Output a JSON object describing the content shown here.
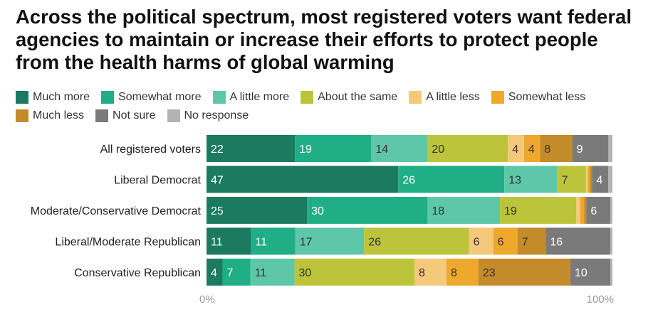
{
  "title": "Across the political spectrum, most registered voters want federal agencies to maintain or increase their efforts to protect people from the health harms of global warming",
  "chart_data": {
    "type": "bar",
    "orientation": "horizontal",
    "stacked": true,
    "title": "Across the political spectrum, most registered voters want federal agencies to maintain or increase their efforts to protect people from the health harms of global warming",
    "xlabel": "",
    "ylabel": "",
    "xlim": [
      0,
      100
    ],
    "x_tick_labels": [
      "0%",
      "100%"
    ],
    "grid": false,
    "legend_position": "top",
    "categories": [
      "All registered voters",
      "Liberal Democrat",
      "Moderate/Conservative Democrat",
      "Liberal/Moderate Republican",
      "Conservative Republican"
    ],
    "series": [
      {
        "name": "Much more",
        "color": "#1b7a5f",
        "values": [
          22,
          47,
          25,
          11,
          4
        ]
      },
      {
        "name": "Somewhat more",
        "color": "#1fae86",
        "values": [
          19,
          26,
          30,
          11,
          7
        ]
      },
      {
        "name": "A little more",
        "color": "#5ec7aa",
        "values": [
          14,
          13,
          18,
          17,
          11
        ]
      },
      {
        "name": "About the same",
        "color": "#bcc43c",
        "values": [
          20,
          7,
          19,
          26,
          30
        ]
      },
      {
        "name": "A little less",
        "color": "#f5c97a",
        "values": [
          4,
          0.5,
          1,
          6,
          8
        ]
      },
      {
        "name": "Somewhat less",
        "color": "#eea92c",
        "values": [
          4,
          0.5,
          1,
          6,
          8
        ]
      },
      {
        "name": "Much less",
        "color": "#c38b2a",
        "values": [
          8,
          0.5,
          0.5,
          7,
          23
        ]
      },
      {
        "name": "Not sure",
        "color": "#7a7a7a",
        "values": [
          9,
          4,
          6,
          16,
          10
        ]
      },
      {
        "name": "No response",
        "color": "#b3b3b3",
        "values": [
          1,
          1,
          0.5,
          0.5,
          0.5
        ]
      }
    ],
    "data_labels": [
      [
        "22",
        "19",
        "14",
        "20",
        "4",
        "4",
        "8",
        "9",
        ""
      ],
      [
        "47",
        "26",
        "13",
        "7",
        "",
        "",
        "",
        "4",
        ""
      ],
      [
        "25",
        "30",
        "18",
        "19",
        "",
        "",
        "",
        "6",
        ""
      ],
      [
        "11",
        "11",
        "17",
        "26",
        "6",
        "6",
        "7",
        "16",
        ""
      ],
      [
        "4",
        "7",
        "11",
        "30",
        "8",
        "8",
        "23",
        "10",
        ""
      ]
    ]
  }
}
